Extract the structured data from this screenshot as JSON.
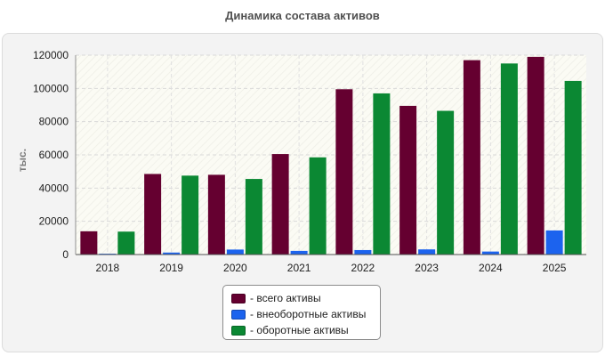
{
  "chart_data": {
    "type": "bar",
    "title": "Динамика состава активов",
    "ylabel": "тыс.",
    "xlabel": "",
    "ylim": [
      0,
      120000
    ],
    "yticks": [
      0,
      20000,
      40000,
      60000,
      80000,
      100000,
      120000
    ],
    "grid": true,
    "legend_position": "bottom",
    "categories": [
      "2018",
      "2019",
      "2020",
      "2021",
      "2022",
      "2023",
      "2024",
      "2025"
    ],
    "series": [
      {
        "name": "- всего активы",
        "color": "#650030",
        "values": [
          14000,
          48500,
          48000,
          60500,
          99500,
          89500,
          117000,
          119000
        ]
      },
      {
        "name": "- внеоборотные активы",
        "color": "#1c63ee",
        "values": [
          500,
          1200,
          3000,
          2200,
          2700,
          3100,
          1800,
          14500
        ]
      },
      {
        "name": "- оборотные активы",
        "color": "#0b8833",
        "values": [
          13800,
          47500,
          45500,
          58500,
          97000,
          86500,
          115000,
          104500
        ]
      }
    ]
  }
}
